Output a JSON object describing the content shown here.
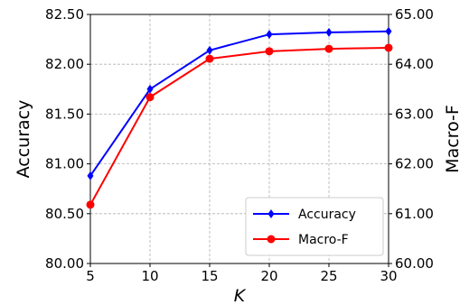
{
  "chart_data": {
    "type": "line",
    "x": [
      5,
      10,
      15,
      20,
      25,
      30
    ],
    "xlabel": "K",
    "xlim": [
      5,
      30
    ],
    "x_ticks": [
      "5",
      "10",
      "15",
      "20",
      "25",
      "30"
    ],
    "ylabel_left": "Accuracy",
    "ylim_left": [
      80.0,
      82.5
    ],
    "y_ticks_left": [
      "80.00",
      "80.50",
      "81.00",
      "81.50",
      "82.00",
      "82.50"
    ],
    "ylabel_right": "Macro-F",
    "ylim_right": [
      60.0,
      65.0
    ],
    "y_ticks_right": [
      "60.00",
      "61.00",
      "62.00",
      "63.00",
      "64.00",
      "65.00"
    ],
    "grid": true,
    "legend_position": "lower-right",
    "series": [
      {
        "name": "Accuracy",
        "axis": "left",
        "color": "#0000ff",
        "marker": "diamond",
        "values": [
          80.88,
          81.75,
          82.14,
          82.3,
          82.32,
          82.33
        ]
      },
      {
        "name": "Macro-F",
        "axis": "right",
        "color": "#ff0000",
        "marker": "circle",
        "values": [
          61.18,
          63.34,
          64.11,
          64.26,
          64.31,
          64.33
        ]
      }
    ]
  }
}
